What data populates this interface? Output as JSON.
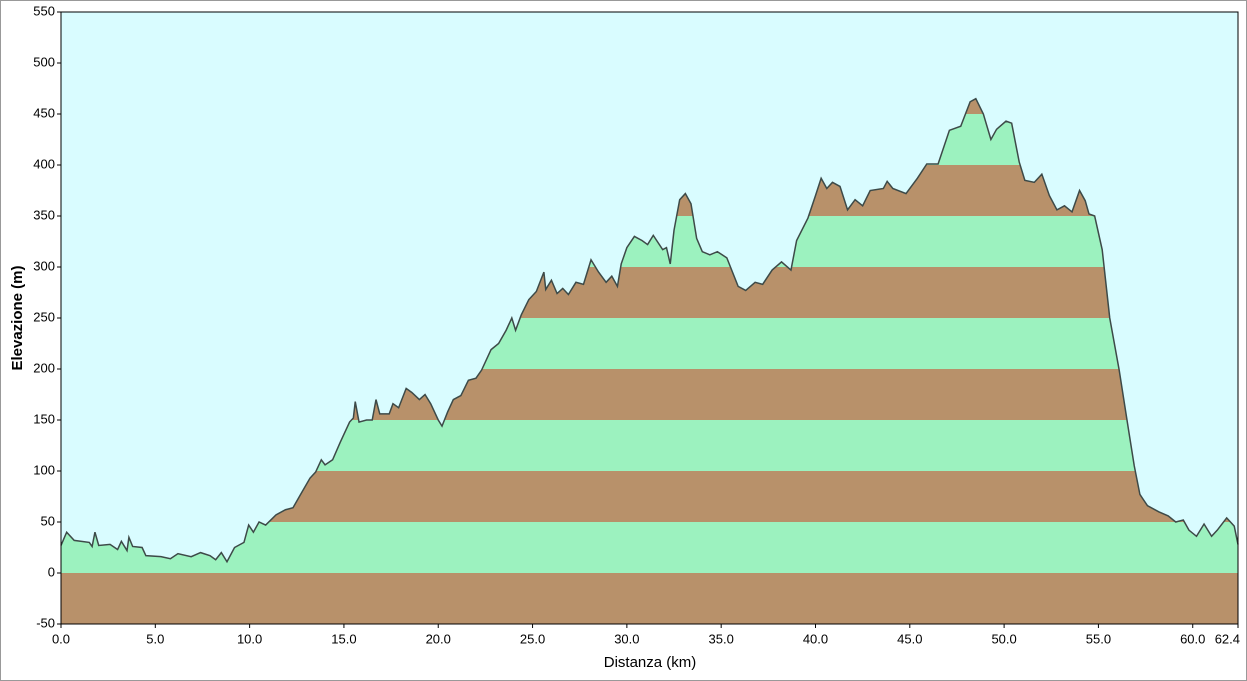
{
  "chart_data": {
    "type": "area",
    "x_label": "Distanza  (km)",
    "y_label": "Elevazione (m)",
    "x": [
      0,
      0.3,
      0.7,
      1.5,
      1.65,
      1.8,
      2.0,
      2.6,
      3.0,
      3.2,
      3.5,
      3.6,
      3.8,
      4.3,
      4.5,
      5.3,
      5.8,
      6.2,
      6.9,
      7.4,
      7.9,
      8.2,
      8.5,
      8.8,
      9.2,
      9.7,
      9.95,
      10.2,
      10.5,
      10.85,
      11.4,
      11.9,
      12.3,
      12.7,
      13.2,
      13.5,
      13.8,
      14.0,
      14.4,
      14.8,
      15.3,
      15.5,
      15.6,
      15.8,
      16.2,
      16.5,
      16.7,
      16.9,
      17.4,
      17.6,
      17.9,
      18.3,
      18.6,
      19.0,
      19.3,
      19.6,
      20.0,
      20.2,
      20.5,
      20.8,
      21.2,
      21.6,
      22.0,
      22.3,
      22.8,
      23.2,
      23.6,
      23.9,
      24.1,
      24.4,
      24.8,
      25.2,
      25.6,
      25.7,
      26.0,
      26.3,
      26.6,
      26.9,
      27.3,
      27.7,
      28.1,
      28.5,
      28.9,
      29.2,
      29.5,
      29.7,
      30.0,
      30.4,
      30.8,
      31.1,
      31.4,
      31.9,
      32.1,
      32.3,
      32.5,
      32.8,
      33.1,
      33.4,
      33.7,
      34.0,
      34.4,
      34.8,
      35.3,
      35.6,
      35.9,
      36.3,
      36.8,
      37.2,
      37.7,
      38.2,
      38.7,
      39.0,
      39.6,
      40.0,
      40.3,
      40.6,
      40.9,
      41.3,
      41.7,
      42.1,
      42.5,
      42.9,
      43.6,
      43.8,
      44.1,
      44.8,
      45.4,
      45.9,
      46.5,
      47.1,
      47.7,
      48.2,
      48.5,
      48.9,
      49.3,
      49.6,
      50.1,
      50.4,
      50.8,
      51.1,
      51.6,
      52.0,
      52.4,
      52.8,
      53.2,
      53.6,
      54.0,
      54.3,
      54.5,
      54.8,
      55.2,
      55.6,
      56.1,
      56.6,
      56.9,
      57.2,
      57.6,
      58.2,
      58.7,
      59.1,
      59.5,
      59.8,
      60.2,
      60.6,
      61.0,
      61.3,
      61.8,
      62.2,
      62.4
    ],
    "values": [
      27,
      40,
      32,
      30,
      26,
      40,
      27,
      28,
      23,
      31,
      22,
      35,
      26,
      25,
      17,
      16,
      14,
      19,
      16,
      20,
      17,
      13,
      20,
      11,
      25,
      30,
      47,
      40,
      50,
      47,
      57,
      62,
      64,
      77,
      93,
      99,
      111,
      106,
      111,
      128,
      148,
      152,
      168,
      148,
      150,
      150,
      170,
      156,
      156,
      166,
      162,
      181,
      177,
      170,
      175,
      166,
      150,
      144,
      158,
      170,
      174,
      189,
      191,
      199,
      219,
      225,
      238,
      250,
      238,
      253,
      268,
      276,
      295,
      278,
      287,
      274,
      279,
      273,
      285,
      283,
      307,
      295,
      285,
      291,
      281,
      303,
      319,
      330,
      326,
      322,
      331,
      317,
      319,
      303,
      336,
      366,
      372,
      362,
      328,
      315,
      312,
      315,
      309,
      295,
      281,
      277,
      285,
      283,
      297,
      305,
      297,
      326,
      348,
      370,
      387,
      377,
      383,
      379,
      356,
      366,
      360,
      375,
      377,
      384,
      377,
      372,
      387,
      401,
      401,
      434,
      438,
      462,
      465,
      450,
      425,
      435,
      443,
      441,
      403,
      385,
      383,
      391,
      370,
      356,
      360,
      354,
      375,
      365,
      352,
      350,
      317,
      250,
      199,
      140,
      105,
      77,
      66,
      60,
      56,
      50,
      52,
      42,
      36,
      48,
      36,
      42,
      54,
      46,
      28
    ],
    "xlim": [
      0,
      62.4
    ],
    "ylim": [
      -50,
      550
    ],
    "xticks": [
      {
        "value": 0,
        "label": "0.0"
      },
      {
        "value": 5,
        "label": "5.0"
      },
      {
        "value": 10,
        "label": "10.0"
      },
      {
        "value": 15,
        "label": "15.0"
      },
      {
        "value": 20,
        "label": "20.0"
      },
      {
        "value": 25,
        "label": "25.0"
      },
      {
        "value": 30,
        "label": "30.0"
      },
      {
        "value": 35,
        "label": "35.0"
      },
      {
        "value": 40,
        "label": "40.0"
      },
      {
        "value": 45,
        "label": "45.0"
      },
      {
        "value": 50,
        "label": "50.0"
      },
      {
        "value": 55,
        "label": "55.0"
      },
      {
        "value": 60,
        "label": "60.0"
      },
      62.4
    ],
    "yticks": [
      -50,
      0,
      50,
      100,
      150,
      200,
      250,
      300,
      350,
      400,
      450,
      500,
      550
    ],
    "line_color": "#3d4a48",
    "band_colors": [
      "#b8916a",
      "#9cf2bf"
    ],
    "background": "#d9fcff"
  }
}
